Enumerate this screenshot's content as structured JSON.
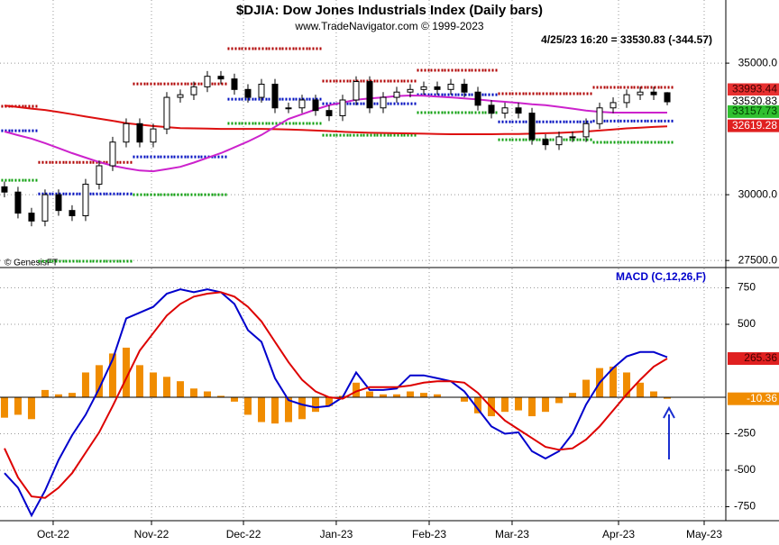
{
  "chart_data": [
    {
      "type": "candlestick",
      "title": "$DJIA:  Dow Jones Industrials Index  (Daily bars)",
      "subtitle": "www.TradeNavigator.com © 1999-2023",
      "annotation": "4/25/23 16:20 = 33530.83 (-344.57)",
      "source": "© GenesisFT",
      "xlim": [
        -0.33,
        53.33
      ],
      "ylim": [
        27300,
        37400
      ],
      "yticks": [
        {
          "value": 35000,
          "label": "35000.0"
        },
        {
          "value": 30000,
          "label": "30000.0"
        },
        {
          "value": 27500,
          "label": "27500.0"
        }
      ],
      "grid": true,
      "open": [
        30300,
        30100,
        29300,
        29000,
        30000,
        29400,
        29200,
        30400,
        31100,
        32000,
        32700,
        32000,
        32500,
        33700,
        33800,
        34100,
        34500,
        34400,
        34000,
        33700,
        34200,
        33300,
        33300,
        33600,
        33200,
        33000,
        33600,
        34300,
        33300,
        33700,
        33900,
        34000,
        34100,
        34000,
        34200,
        33900,
        33400,
        33100,
        33300,
        33100,
        32100,
        31900,
        32200,
        32200,
        32700,
        33300,
        33500,
        33800,
        33900,
        33875.4
      ],
      "high": [
        30500,
        30300,
        29500,
        30200,
        30200,
        29600,
        30600,
        31300,
        32200,
        32900,
        32900,
        32700,
        33900,
        34000,
        34300,
        34700,
        34700,
        34600,
        34200,
        34400,
        34400,
        33500,
        33800,
        33800,
        33400,
        33800,
        34500,
        34500,
        33900,
        34100,
        34200,
        34300,
        34300,
        34400,
        34400,
        34100,
        33600,
        33500,
        33500,
        33300,
        32300,
        32400,
        32400,
        32900,
        33500,
        33700,
        34000,
        34100,
        34100,
        33900
      ],
      "low": [
        29900,
        29100,
        28800,
        28800,
        29200,
        29000,
        29000,
        30200,
        30900,
        31800,
        31800,
        31800,
        32300,
        33500,
        33600,
        33900,
        34200,
        33800,
        33500,
        33500,
        33100,
        33100,
        33100,
        33000,
        32800,
        32800,
        33400,
        33100,
        33100,
        33500,
        33700,
        33800,
        33800,
        33800,
        33700,
        33200,
        32900,
        32900,
        32900,
        31900,
        31700,
        31700,
        32000,
        32000,
        32500,
        33100,
        33300,
        33600,
        33600,
        33400
      ],
      "close": [
        30100,
        29300,
        29000,
        30000,
        29400,
        29200,
        30400,
        31100,
        32000,
        32700,
        32000,
        32500,
        33700,
        33800,
        34100,
        34500,
        34400,
        34000,
        33700,
        34200,
        33300,
        33300,
        33600,
        33200,
        33000,
        33600,
        34300,
        33300,
        33700,
        33900,
        34000,
        34100,
        34000,
        34200,
        33900,
        33400,
        33100,
        33300,
        33100,
        32100,
        31900,
        32200,
        32200,
        32700,
        33300,
        33500,
        33800,
        33900,
        33800,
        33530.83
      ],
      "up_color": "#ffffff",
      "down_color": "#000000",
      "overlays": [
        {
          "color": "#dd1010",
          "values": [
            33390,
            33330,
            33270,
            33220,
            33140,
            33060,
            32970,
            32890,
            32810,
            32720,
            32660,
            32610,
            32570,
            32530,
            32520,
            32510,
            32500,
            32500,
            32500,
            32500,
            32490,
            32480,
            32460,
            32440,
            32420,
            32390,
            32370,
            32355,
            32345,
            32335,
            32330,
            32320,
            32310,
            32300,
            32300,
            32300,
            32300,
            32305,
            32310,
            32320,
            32335,
            32350,
            32375,
            32400,
            32440,
            32480,
            32520,
            32550,
            32575,
            32600
          ]
        },
        {
          "color": "#cc22cc",
          "values": [
            32400,
            32260,
            32130,
            31960,
            31770,
            31580,
            31410,
            31240,
            31100,
            31000,
            30920,
            30890,
            30970,
            31060,
            31220,
            31400,
            31580,
            31800,
            32020,
            32270,
            32580,
            32880,
            33060,
            33240,
            33400,
            33500,
            33610,
            33660,
            33700,
            33750,
            33770,
            33760,
            33730,
            33700,
            33660,
            33620,
            33570,
            33530,
            33490,
            33440,
            33400,
            33340,
            33270,
            33200,
            33150,
            33120,
            33120,
            33120,
            33120,
            33120
          ]
        }
      ],
      "levels": [
        {
          "color": "#b00000",
          "values": [
            33360,
            33360,
            33360,
            31230,
            31230,
            31230,
            31230,
            31230,
            31230,
            31230,
            34210,
            34210,
            34210,
            34210,
            34210,
            34210,
            34210,
            35550,
            35550,
            35550,
            35550,
            35550,
            35550,
            35550,
            34320,
            34320,
            34320,
            34320,
            34320,
            34320,
            34320,
            34730,
            34730,
            34730,
            34730,
            34730,
            34730,
            33840,
            33840,
            33840,
            33840,
            33840,
            33840,
            33840,
            34080,
            34080,
            34080,
            34080,
            34080,
            34080
          ]
        },
        {
          "color": "#0010c0",
          "values": [
            32430,
            32430,
            32430,
            30030,
            30030,
            30030,
            30030,
            30030,
            30030,
            30030,
            31440,
            31440,
            31440,
            31440,
            31440,
            31440,
            31440,
            33630,
            33630,
            33630,
            33630,
            33630,
            33630,
            33630,
            33460,
            33460,
            33460,
            33460,
            33460,
            33460,
            33460,
            33800,
            33800,
            33800,
            33800,
            33800,
            33800,
            32770,
            32770,
            32770,
            32770,
            32770,
            32770,
            32770,
            32800,
            32800,
            32800,
            32800,
            32800,
            32800
          ]
        },
        {
          "color": "#10a010",
          "values": [
            30550,
            30550,
            30550,
            27470,
            27470,
            27470,
            27470,
            27470,
            27470,
            27470,
            30000,
            30000,
            30000,
            30000,
            30000,
            30000,
            30000,
            32710,
            32710,
            32710,
            32710,
            32710,
            32710,
            32710,
            32260,
            32260,
            32260,
            32260,
            32260,
            32260,
            32260,
            33120,
            33120,
            33120,
            33120,
            33120,
            33120,
            32090,
            32090,
            32090,
            32090,
            32090,
            32090,
            32090,
            31990,
            31990,
            31990,
            31990,
            31990,
            31990
          ]
        }
      ],
      "last_labels": [
        {
          "value": 33993.44,
          "color": "#e83030",
          "text_color": "#400000"
        },
        {
          "value": 33530.83,
          "color": "#ffffff",
          "text_color": "#000000"
        },
        {
          "value": 33157.73,
          "color": "#30c030",
          "text_color": "#004000"
        },
        {
          "value": 32619.28,
          "color": "#e02020",
          "text_color": "#ffffff"
        }
      ]
    },
    {
      "type": "line",
      "title": "MACD (C,12,26,F)",
      "title_color": "#0000cc",
      "xlim": [
        -0.33,
        53.33
      ],
      "xticks": [
        {
          "value": 3.6,
          "label": "Oct-22"
        },
        {
          "value": 10.87,
          "label": "Nov-22"
        },
        {
          "value": 17.67,
          "label": "Dec-22"
        },
        {
          "value": 24.53,
          "label": "Jan-23"
        },
        {
          "value": 31.4,
          "label": "Feb-23"
        },
        {
          "value": 37.53,
          "label": "Mar-23"
        },
        {
          "value": 45.4,
          "label": "Apr-23"
        },
        {
          "value": 51.73,
          "label": "May-23"
        }
      ],
      "ylim": [
        -846,
        883
      ],
      "yticks": [
        750,
        500,
        -250,
        -500,
        -750
      ],
      "grid": true,
      "histogram": {
        "color": "#f08c00",
        "values": [
          -140,
          -120,
          -150,
          50,
          20,
          30,
          170,
          220,
          300,
          340,
          220,
          170,
          140,
          110,
          60,
          40,
          10,
          -30,
          -120,
          -170,
          -180,
          -170,
          -150,
          -100,
          -60,
          10,
          100,
          40,
          20,
          20,
          40,
          30,
          20,
          0,
          -30,
          -110,
          -130,
          -100,
          -90,
          -130,
          -100,
          -40,
          30,
          120,
          200,
          210,
          170,
          100,
          40,
          -10.36
        ]
      },
      "series": [
        {
          "color": "#0000cc",
          "values": [
            -520,
            -620,
            -810,
            -640,
            -430,
            -260,
            -120,
            60,
            260,
            540,
            580,
            620,
            710,
            740,
            720,
            740,
            720,
            640,
            460,
            380,
            130,
            -20,
            -50,
            -70,
            -60,
            0,
            170,
            50,
            50,
            60,
            150,
            150,
            130,
            110,
            40,
            -80,
            -200,
            -250,
            -240,
            -370,
            -420,
            -370,
            -250,
            -50,
            100,
            200,
            280,
            310,
            310,
            275
          ]
        },
        {
          "color": "#dd0000",
          "values": [
            -350,
            -550,
            -680,
            -690,
            -620,
            -520,
            -380,
            -240,
            -60,
            130,
            320,
            440,
            560,
            640,
            690,
            710,
            720,
            690,
            620,
            520,
            380,
            240,
            120,
            40,
            0,
            -10,
            40,
            70,
            70,
            70,
            80,
            100,
            110,
            110,
            100,
            30,
            -70,
            -160,
            -220,
            -280,
            -340,
            -360,
            -350,
            -290,
            -200,
            -90,
            20,
            120,
            210,
            265.36
          ]
        }
      ],
      "last_labels": [
        {
          "value": 265.36,
          "color": "#e02020",
          "text_color": "#400000"
        },
        {
          "value": -10.36,
          "color": "#f08c00",
          "text_color": "#ffffff"
        }
      ]
    }
  ]
}
